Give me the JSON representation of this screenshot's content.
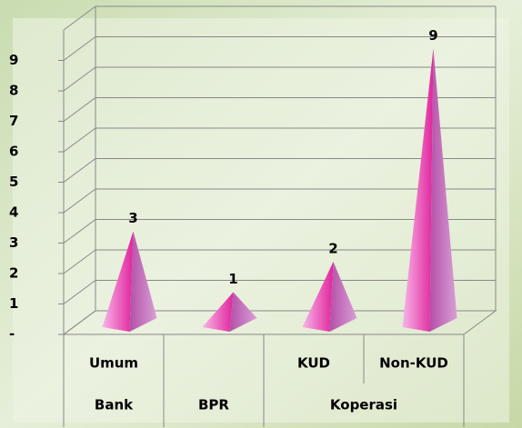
{
  "chart_data": {
    "type": "pyramid",
    "categories": [
      "Umum",
      null,
      "KUD",
      "Non-KUD"
    ],
    "category_groups": [
      "Bank",
      "BPR",
      "Koperasi",
      null
    ],
    "values": [
      3,
      1,
      2,
      9
    ],
    "color": "#e040b0",
    "ylim": [
      0,
      10
    ],
    "yticks": [
      {
        "value": 0,
        "label": "-"
      },
      1,
      2,
      3,
      4,
      5,
      6,
      7,
      8,
      9
    ],
    "grid": true
  }
}
